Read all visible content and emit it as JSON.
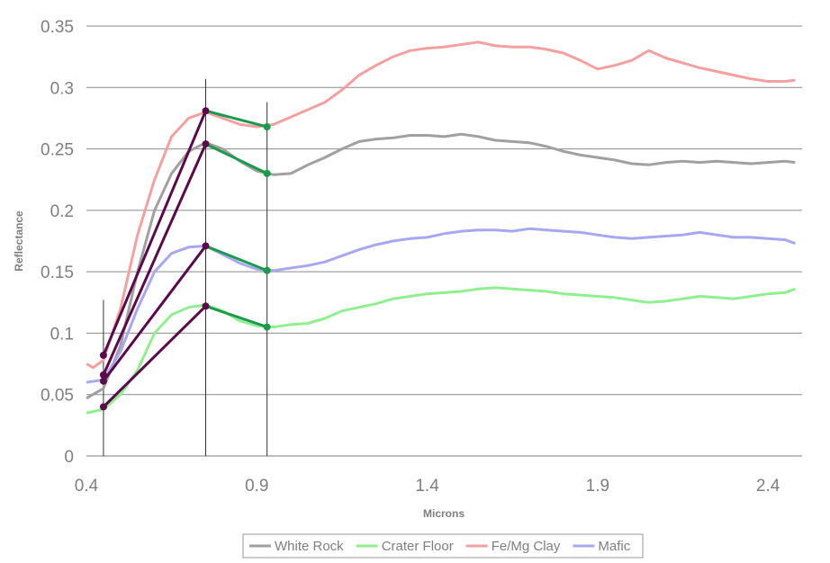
{
  "chart_data": {
    "type": "line",
    "title": "",
    "xlabel": "Microns",
    "ylabel": "Reflectance",
    "xlim": [
      0.4,
      2.5
    ],
    "ylim": [
      0,
      0.35
    ],
    "xticks": [
      "0.4",
      "0.9",
      "1.4",
      "1.9",
      "2.4"
    ],
    "xtick_values": [
      0.4,
      0.9,
      1.4,
      1.9,
      2.4
    ],
    "yticks": [
      "0",
      "0.05",
      "0.1",
      "0.15",
      "0.2",
      "0.25",
      "0.3",
      "0.35"
    ],
    "ytick_values": [
      0,
      0.05,
      0.1,
      0.15,
      0.2,
      0.25,
      0.3,
      0.35
    ],
    "grid": "horizontal",
    "legend_position": "bottom",
    "vertical_markers": [
      0.45,
      0.75,
      0.93
    ],
    "series": [
      {
        "name": "White Rock",
        "color": "#a0a0a0",
        "points": [
          [
            0.4,
            0.047
          ],
          [
            0.45,
            0.055
          ],
          [
            0.5,
            0.09
          ],
          [
            0.55,
            0.15
          ],
          [
            0.6,
            0.2
          ],
          [
            0.65,
            0.23
          ],
          [
            0.7,
            0.248
          ],
          [
            0.75,
            0.255
          ],
          [
            0.8,
            0.25
          ],
          [
            0.85,
            0.24
          ],
          [
            0.9,
            0.232
          ],
          [
            0.95,
            0.229
          ],
          [
            1.0,
            0.23
          ],
          [
            1.05,
            0.237
          ],
          [
            1.1,
            0.243
          ],
          [
            1.15,
            0.25
          ],
          [
            1.2,
            0.256
          ],
          [
            1.25,
            0.258
          ],
          [
            1.3,
            0.259
          ],
          [
            1.35,
            0.261
          ],
          [
            1.4,
            0.261
          ],
          [
            1.45,
            0.26
          ],
          [
            1.5,
            0.262
          ],
          [
            1.55,
            0.26
          ],
          [
            1.6,
            0.257
          ],
          [
            1.65,
            0.256
          ],
          [
            1.7,
            0.255
          ],
          [
            1.75,
            0.252
          ],
          [
            1.8,
            0.248
          ],
          [
            1.85,
            0.245
          ],
          [
            1.9,
            0.243
          ],
          [
            1.95,
            0.241
          ],
          [
            2.0,
            0.238
          ],
          [
            2.05,
            0.237
          ],
          [
            2.1,
            0.239
          ],
          [
            2.15,
            0.24
          ],
          [
            2.2,
            0.239
          ],
          [
            2.25,
            0.24
          ],
          [
            2.3,
            0.239
          ],
          [
            2.35,
            0.238
          ],
          [
            2.4,
            0.239
          ],
          [
            2.45,
            0.24
          ],
          [
            2.48,
            0.239
          ]
        ]
      },
      {
        "name": "Crater Floor",
        "color": "#90f090",
        "points": [
          [
            0.4,
            0.035
          ],
          [
            0.45,
            0.038
          ],
          [
            0.5,
            0.05
          ],
          [
            0.55,
            0.07
          ],
          [
            0.6,
            0.1
          ],
          [
            0.65,
            0.115
          ],
          [
            0.7,
            0.121
          ],
          [
            0.75,
            0.123
          ],
          [
            0.8,
            0.118
          ],
          [
            0.85,
            0.11
          ],
          [
            0.9,
            0.106
          ],
          [
            0.95,
            0.105
          ],
          [
            1.0,
            0.107
          ],
          [
            1.05,
            0.108
          ],
          [
            1.1,
            0.112
          ],
          [
            1.15,
            0.118
          ],
          [
            1.2,
            0.121
          ],
          [
            1.25,
            0.124
          ],
          [
            1.3,
            0.128
          ],
          [
            1.35,
            0.13
          ],
          [
            1.4,
            0.132
          ],
          [
            1.45,
            0.133
          ],
          [
            1.5,
            0.134
          ],
          [
            1.55,
            0.136
          ],
          [
            1.6,
            0.137
          ],
          [
            1.65,
            0.136
          ],
          [
            1.7,
            0.135
          ],
          [
            1.75,
            0.134
          ],
          [
            1.8,
            0.132
          ],
          [
            1.85,
            0.131
          ],
          [
            1.9,
            0.13
          ],
          [
            1.95,
            0.129
          ],
          [
            2.0,
            0.127
          ],
          [
            2.05,
            0.125
          ],
          [
            2.1,
            0.126
          ],
          [
            2.15,
            0.128
          ],
          [
            2.2,
            0.13
          ],
          [
            2.25,
            0.129
          ],
          [
            2.3,
            0.128
          ],
          [
            2.35,
            0.13
          ],
          [
            2.4,
            0.132
          ],
          [
            2.45,
            0.133
          ],
          [
            2.48,
            0.136
          ]
        ]
      },
      {
        "name": "Fe/Mg Clay",
        "color": "#f4a0a0",
        "points": [
          [
            0.4,
            0.075
          ],
          [
            0.42,
            0.072
          ],
          [
            0.45,
            0.078
          ],
          [
            0.5,
            0.12
          ],
          [
            0.55,
            0.18
          ],
          [
            0.6,
            0.225
          ],
          [
            0.65,
            0.26
          ],
          [
            0.7,
            0.275
          ],
          [
            0.75,
            0.28
          ],
          [
            0.8,
            0.275
          ],
          [
            0.85,
            0.27
          ],
          [
            0.9,
            0.268
          ],
          [
            0.95,
            0.27
          ],
          [
            1.0,
            0.276
          ],
          [
            1.05,
            0.282
          ],
          [
            1.1,
            0.288
          ],
          [
            1.15,
            0.298
          ],
          [
            1.2,
            0.31
          ],
          [
            1.25,
            0.318
          ],
          [
            1.3,
            0.325
          ],
          [
            1.35,
            0.33
          ],
          [
            1.4,
            0.332
          ],
          [
            1.45,
            0.333
          ],
          [
            1.5,
            0.335
          ],
          [
            1.55,
            0.337
          ],
          [
            1.6,
            0.334
          ],
          [
            1.65,
            0.333
          ],
          [
            1.7,
            0.333
          ],
          [
            1.75,
            0.331
          ],
          [
            1.8,
            0.328
          ],
          [
            1.85,
            0.322
          ],
          [
            1.9,
            0.315
          ],
          [
            1.95,
            0.318
          ],
          [
            2.0,
            0.322
          ],
          [
            2.05,
            0.33
          ],
          [
            2.1,
            0.324
          ],
          [
            2.15,
            0.32
          ],
          [
            2.2,
            0.316
          ],
          [
            2.25,
            0.313
          ],
          [
            2.3,
            0.31
          ],
          [
            2.35,
            0.307
          ],
          [
            2.4,
            0.305
          ],
          [
            2.45,
            0.305
          ],
          [
            2.48,
            0.306
          ]
        ]
      },
      {
        "name": "Mafic",
        "color": "#a8a8f0",
        "points": [
          [
            0.4,
            0.06
          ],
          [
            0.45,
            0.062
          ],
          [
            0.5,
            0.085
          ],
          [
            0.55,
            0.12
          ],
          [
            0.6,
            0.15
          ],
          [
            0.65,
            0.165
          ],
          [
            0.7,
            0.17
          ],
          [
            0.75,
            0.171
          ],
          [
            0.8,
            0.164
          ],
          [
            0.85,
            0.157
          ],
          [
            0.9,
            0.152
          ],
          [
            0.95,
            0.151
          ],
          [
            1.0,
            0.153
          ],
          [
            1.05,
            0.155
          ],
          [
            1.1,
            0.158
          ],
          [
            1.15,
            0.163
          ],
          [
            1.2,
            0.168
          ],
          [
            1.25,
            0.172
          ],
          [
            1.3,
            0.175
          ],
          [
            1.35,
            0.177
          ],
          [
            1.4,
            0.178
          ],
          [
            1.45,
            0.181
          ],
          [
            1.5,
            0.183
          ],
          [
            1.55,
            0.184
          ],
          [
            1.6,
            0.184
          ],
          [
            1.65,
            0.183
          ],
          [
            1.7,
            0.185
          ],
          [
            1.75,
            0.184
          ],
          [
            1.8,
            0.183
          ],
          [
            1.85,
            0.182
          ],
          [
            1.9,
            0.18
          ],
          [
            1.95,
            0.178
          ],
          [
            2.0,
            0.177
          ],
          [
            2.05,
            0.178
          ],
          [
            2.1,
            0.179
          ],
          [
            2.15,
            0.18
          ],
          [
            2.2,
            0.182
          ],
          [
            2.25,
            0.18
          ],
          [
            2.3,
            0.178
          ],
          [
            2.35,
            0.178
          ],
          [
            2.4,
            0.177
          ],
          [
            2.45,
            0.176
          ],
          [
            2.48,
            0.173
          ]
        ]
      }
    ],
    "overlay_segments": [
      {
        "color": "#5a0a4a",
        "from": [
          0.45,
          0.04
        ],
        "to": [
          0.75,
          0.122
        ]
      },
      {
        "color": "#5a0a4a",
        "from": [
          0.45,
          0.061
        ],
        "to": [
          0.75,
          0.171
        ]
      },
      {
        "color": "#5a0a4a",
        "from": [
          0.45,
          0.066
        ],
        "to": [
          0.75,
          0.254
        ]
      },
      {
        "color": "#5a0a4a",
        "from": [
          0.45,
          0.082
        ],
        "to": [
          0.75,
          0.281
        ]
      },
      {
        "color": "#1a9a4a",
        "from": [
          0.75,
          0.122
        ],
        "to": [
          0.93,
          0.105
        ]
      },
      {
        "color": "#1a9a4a",
        "from": [
          0.75,
          0.171
        ],
        "to": [
          0.93,
          0.151
        ]
      },
      {
        "color": "#1a9a4a",
        "from": [
          0.75,
          0.254
        ],
        "to": [
          0.93,
          0.23
        ]
      },
      {
        "color": "#1a9a4a",
        "from": [
          0.75,
          0.281
        ],
        "to": [
          0.93,
          0.268
        ]
      }
    ],
    "overlay_points": [
      {
        "color": "#5a0a4a",
        "x": 0.45,
        "y": 0.04
      },
      {
        "color": "#5a0a4a",
        "x": 0.45,
        "y": 0.061
      },
      {
        "color": "#5a0a4a",
        "x": 0.45,
        "y": 0.066
      },
      {
        "color": "#5a0a4a",
        "x": 0.45,
        "y": 0.082
      },
      {
        "color": "#5a0a4a",
        "x": 0.75,
        "y": 0.122
      },
      {
        "color": "#5a0a4a",
        "x": 0.75,
        "y": 0.171
      },
      {
        "color": "#5a0a4a",
        "x": 0.75,
        "y": 0.254
      },
      {
        "color": "#5a0a4a",
        "x": 0.75,
        "y": 0.281
      },
      {
        "color": "#1a9a4a",
        "x": 0.93,
        "y": 0.105
      },
      {
        "color": "#1a9a4a",
        "x": 0.93,
        "y": 0.151
      },
      {
        "color": "#1a9a4a",
        "x": 0.93,
        "y": 0.23
      },
      {
        "color": "#1a9a4a",
        "x": 0.93,
        "y": 0.268
      }
    ]
  }
}
